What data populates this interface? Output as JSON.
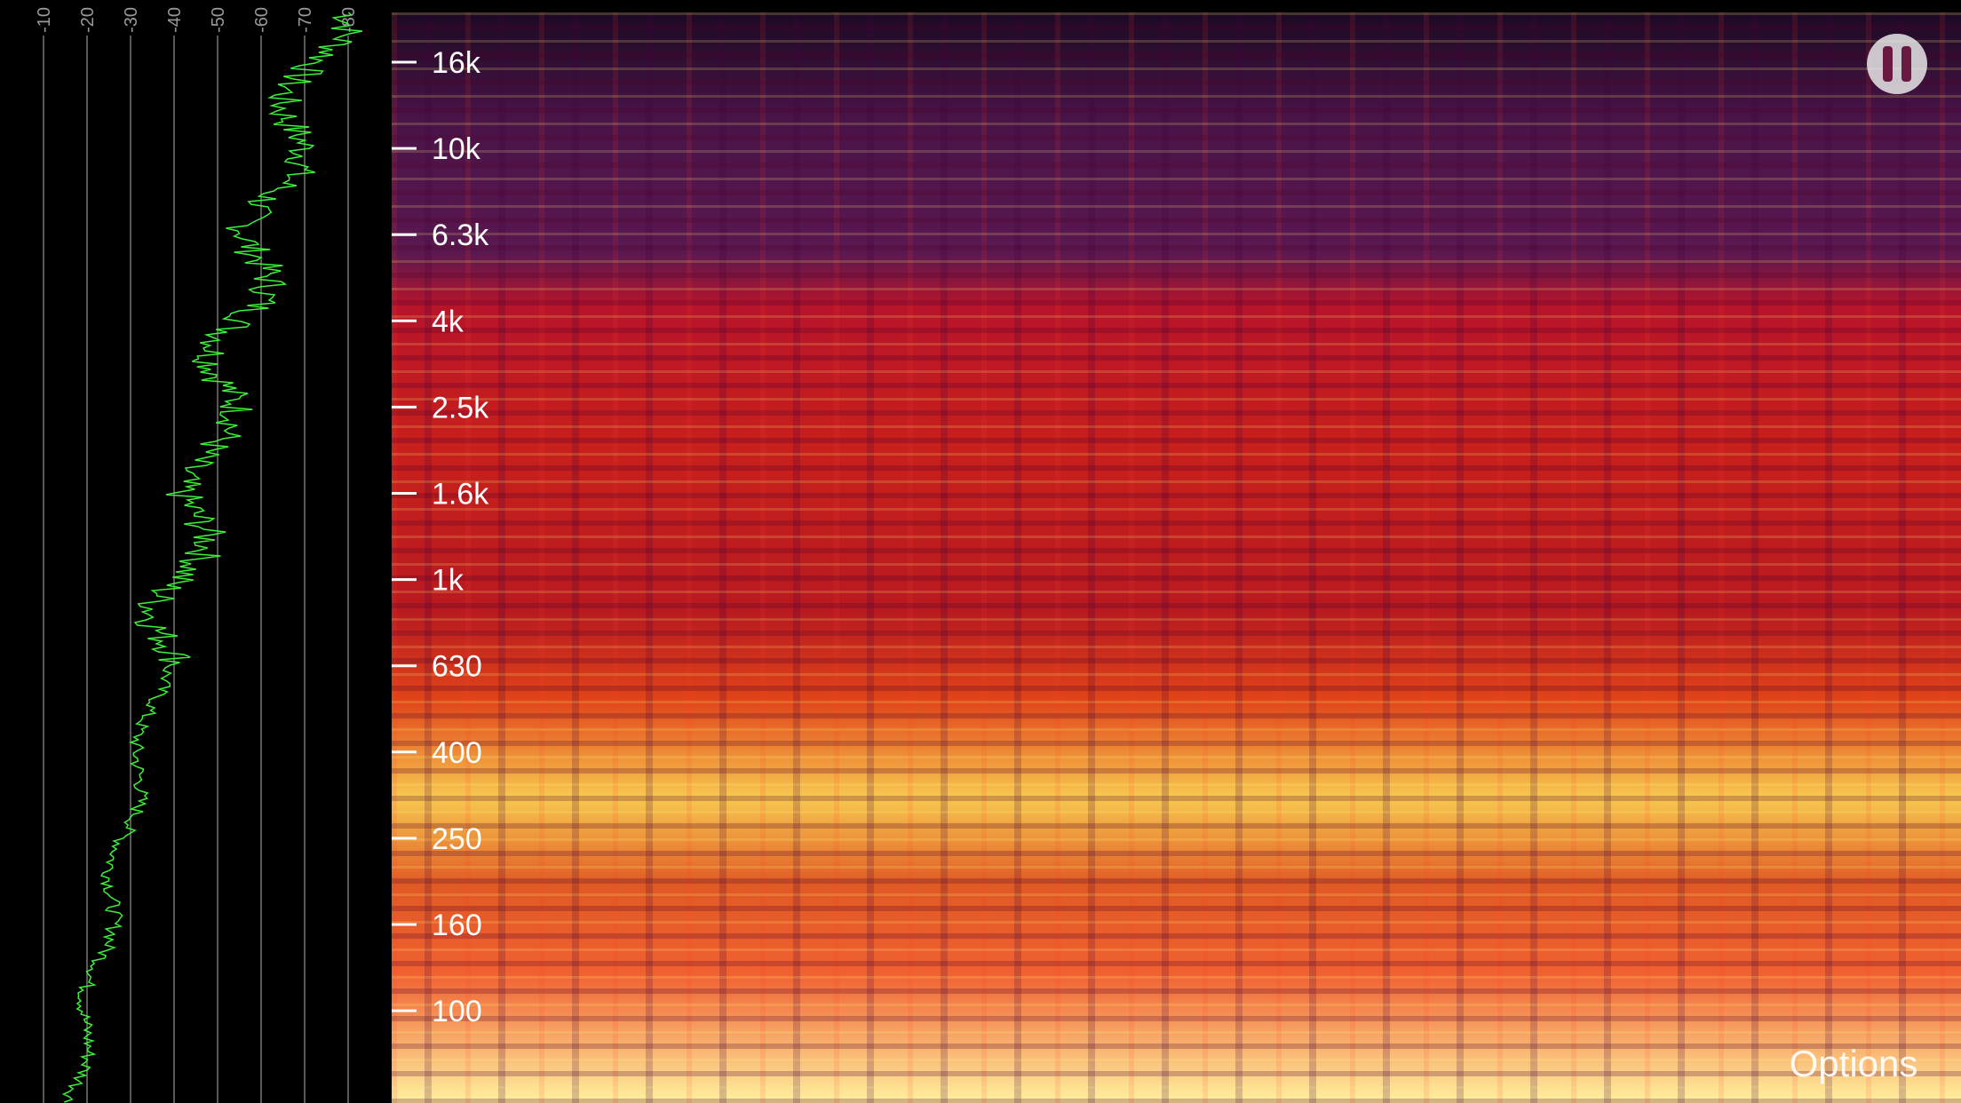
{
  "db_scale": {
    "labels": [
      "-10",
      "-20",
      "-30",
      "-40",
      "-50",
      "-60",
      "-70",
      "-80"
    ]
  },
  "frequency_axis": {
    "labels": [
      "16k",
      "10k",
      "6.3k",
      "4k",
      "2.5k",
      "1.6k",
      "1k",
      "630",
      "400",
      "250",
      "160",
      "100"
    ]
  },
  "options_button": "Options"
}
